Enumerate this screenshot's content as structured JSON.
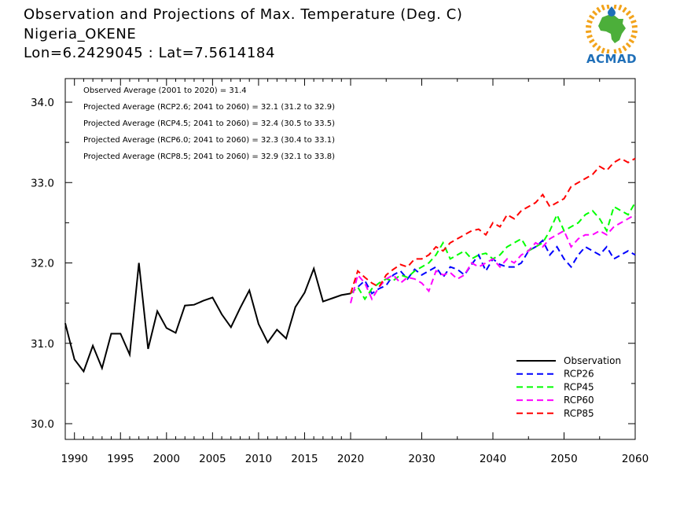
{
  "title_lines": [
    "Observation and Projections of Max. Temperature (Deg. C)",
    "Nigeria_OKENE",
    "Lon=6.2429045 : Lat=7.5614184"
  ],
  "logo": {
    "text": "ACMAD",
    "colors": {
      "africa": "#4caf3a",
      "rays": "#f2a31b",
      "drop": "#1f6fb8"
    }
  },
  "annotations": [
    "Observed Average (2001 to 2020) = 31.4",
    "Projected Average (RCP2.6; 2041 to 2060) = 32.1 (31.2 to 32.9)",
    "Projected Average (RCP4.5; 2041 to 2060) = 32.4 (30.5 to 33.5)",
    "Projected Average (RCP6.0; 2041 to 2060) = 32.3 (30.4 to 33.1)",
    "Projected Average (RCP8.5; 2041 to 2060) = 32.9 (32.1 to 33.8)"
  ],
  "chart_data": {
    "type": "line",
    "xlim": [
      1989,
      2060
    ],
    "ylim": [
      29.8,
      35.0
    ],
    "x_axis_note": "axis is broken: 1989-2020 compressed left segment, 2020-2060 expanded right segment",
    "x_ticks": [
      "1990",
      "1995",
      "2000",
      "2005",
      "2010",
      "2015",
      "2020",
      "2030",
      "2040",
      "2050",
      "2060"
    ],
    "x_tick_values": [
      1990,
      1995,
      2000,
      2005,
      2010,
      2015,
      2020,
      2030,
      2040,
      2050,
      2060
    ],
    "y_ticks": [
      "30.0",
      "31.0",
      "32.0",
      "33.0",
      "34.0"
    ],
    "y_tick_values": [
      30.0,
      31.0,
      32.0,
      33.0,
      34.0
    ],
    "legend_position": "bottom-right",
    "grid": false,
    "series": [
      {
        "name": "Observation",
        "color": "#000000",
        "dashed": false,
        "x": [
          1989,
          1990,
          1991,
          1992,
          1993,
          1994,
          1995,
          1996,
          1997,
          1998,
          1999,
          2000,
          2001,
          2002,
          2003,
          2004,
          2005,
          2006,
          2007,
          2008,
          2009,
          2010,
          2011,
          2012,
          2013,
          2014,
          2015,
          2016,
          2017,
          2018,
          2019,
          2020
        ],
        "y": [
          31.25,
          30.8,
          30.65,
          30.97,
          30.69,
          31.12,
          31.12,
          30.86,
          32.0,
          30.93,
          31.4,
          31.19,
          31.13,
          31.47,
          31.48,
          31.53,
          31.57,
          31.36,
          31.2,
          31.44,
          31.66,
          31.24,
          31.01,
          31.17,
          31.06,
          31.45,
          31.63,
          31.93,
          31.52,
          31.56,
          31.6,
          31.62
        ]
      },
      {
        "name": "RCP26",
        "color": "#0000ff",
        "dashed": true,
        "x": [
          2020,
          2021,
          2022,
          2023,
          2024,
          2025,
          2026,
          2027,
          2028,
          2029,
          2030,
          2031,
          2032,
          2033,
          2034,
          2035,
          2036,
          2037,
          2038,
          2039,
          2040,
          2041,
          2042,
          2043,
          2044,
          2045,
          2046,
          2047,
          2048,
          2049,
          2050,
          2051,
          2052,
          2053,
          2054,
          2055,
          2056,
          2057,
          2058,
          2059,
          2060
        ],
        "y": [
          31.62,
          31.7,
          31.78,
          31.62,
          31.68,
          31.72,
          31.85,
          31.9,
          31.8,
          31.92,
          31.85,
          31.9,
          31.95,
          31.82,
          31.95,
          31.92,
          31.85,
          31.98,
          32.1,
          31.9,
          32.05,
          31.98,
          31.95,
          31.95,
          32.0,
          32.15,
          32.2,
          32.28,
          32.1,
          32.2,
          32.05,
          31.95,
          32.1,
          32.2,
          32.15,
          32.1,
          32.2,
          32.05,
          32.1,
          32.15,
          32.1
        ]
      },
      {
        "name": "RCP45",
        "color": "#00ff00",
        "dashed": true,
        "x": [
          2020,
          2021,
          2022,
          2023,
          2024,
          2025,
          2026,
          2027,
          2028,
          2029,
          2030,
          2031,
          2032,
          2033,
          2034,
          2035,
          2036,
          2037,
          2038,
          2039,
          2040,
          2041,
          2042,
          2043,
          2044,
          2045,
          2046,
          2047,
          2048,
          2049,
          2050,
          2051,
          2052,
          2053,
          2054,
          2055,
          2056,
          2057,
          2058,
          2059,
          2060
        ],
        "y": [
          31.62,
          31.7,
          31.55,
          31.68,
          31.75,
          31.8,
          31.78,
          31.85,
          31.82,
          31.9,
          31.95,
          32.0,
          32.1,
          32.25,
          32.05,
          32.1,
          32.15,
          32.05,
          32.1,
          32.12,
          32.05,
          32.1,
          32.2,
          32.25,
          32.3,
          32.15,
          32.2,
          32.25,
          32.4,
          32.6,
          32.4,
          32.45,
          32.5,
          32.6,
          32.65,
          32.55,
          32.4,
          32.7,
          32.65,
          32.6,
          32.75
        ]
      },
      {
        "name": "RCP60",
        "color": "#ff00ff",
        "dashed": true,
        "x": [
          2020,
          2021,
          2022,
          2023,
          2024,
          2025,
          2026,
          2027,
          2028,
          2029,
          2030,
          2031,
          2032,
          2033,
          2034,
          2035,
          2036,
          2037,
          2038,
          2039,
          2040,
          2041,
          2042,
          2043,
          2044,
          2045,
          2046,
          2047,
          2048,
          2049,
          2050,
          2051,
          2052,
          2053,
          2054,
          2055,
          2056,
          2057,
          2058,
          2059,
          2060
        ],
        "y": [
          31.5,
          31.85,
          31.75,
          31.55,
          31.7,
          31.8,
          31.85,
          31.75,
          31.82,
          31.8,
          31.75,
          31.65,
          31.9,
          31.85,
          31.88,
          31.8,
          31.85,
          32.0,
          31.95,
          32.0,
          32.05,
          31.95,
          32.05,
          32.0,
          32.1,
          32.15,
          32.25,
          32.2,
          32.3,
          32.35,
          32.4,
          32.2,
          32.3,
          32.35,
          32.35,
          32.4,
          32.35,
          32.45,
          32.5,
          32.55,
          32.6
        ]
      },
      {
        "name": "RCP85",
        "color": "#ff0000",
        "dashed": true,
        "x": [
          2020,
          2021,
          2022,
          2023,
          2024,
          2025,
          2026,
          2027,
          2028,
          2029,
          2030,
          2031,
          2032,
          2033,
          2034,
          2035,
          2036,
          2037,
          2038,
          2039,
          2040,
          2041,
          2042,
          2043,
          2044,
          2045,
          2046,
          2047,
          2048,
          2049,
          2050,
          2051,
          2052,
          2053,
          2054,
          2055,
          2056,
          2057,
          2058,
          2059,
          2060
        ],
        "y": [
          31.62,
          31.9,
          31.82,
          31.75,
          31.7,
          31.85,
          31.92,
          31.98,
          31.95,
          32.05,
          32.05,
          32.1,
          32.2,
          32.15,
          32.25,
          32.3,
          32.35,
          32.4,
          32.42,
          32.35,
          32.5,
          32.45,
          32.6,
          32.55,
          32.65,
          32.7,
          32.75,
          32.85,
          32.7,
          32.75,
          32.8,
          32.95,
          33.0,
          33.05,
          33.1,
          33.2,
          33.15,
          33.25,
          33.3,
          33.25,
          33.3
        ]
      }
    ]
  }
}
